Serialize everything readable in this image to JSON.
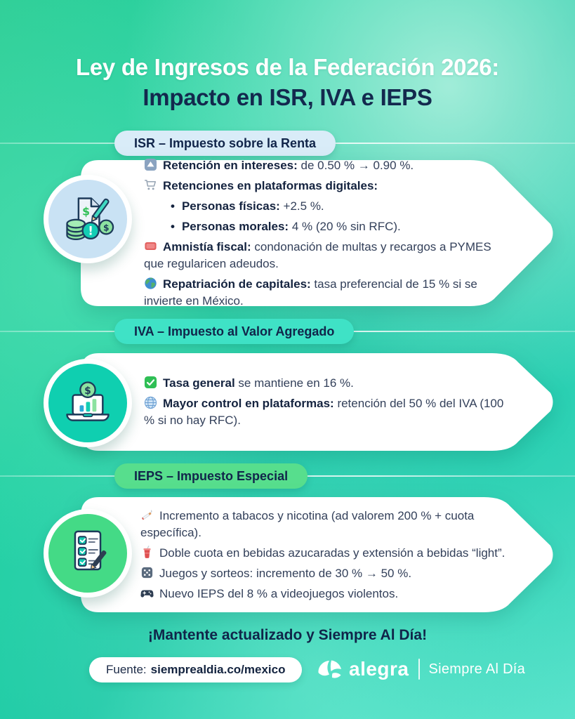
{
  "title": {
    "line1": "Ley de Ingresos de la Federación 2026:",
    "line2": "Impacto en ISR, IVA e IEPS"
  },
  "colors": {
    "background_green": "#2fcf97",
    "background_teal": "#19c7a4",
    "navy_text": "#13294e",
    "card_white": "#ffffff",
    "isr_pill": "#d9ecf8",
    "iva_pill": "#3fe2c6",
    "ieps_pill": "#57de8d",
    "isr_badge": "#c9e2f4",
    "iva_badge": "#0fcfb0",
    "ieps_badge": "#44da86"
  },
  "sections": [
    {
      "id": "isr",
      "pill_label": "ISR – Impuesto sobre la Renta",
      "pill_color": "#d9ecf8",
      "badge_icon": "money-documents-icon",
      "badge_color": "#c9e2f4",
      "items": [
        {
          "icon": "up-button-icon",
          "bold": "Retención en intereses:",
          "text": " de 0.50 % → 0.90 %."
        },
        {
          "icon": "shopping-cart-icon",
          "bold": "Retenciones en plataformas digitales:",
          "text": ""
        },
        {
          "bullet": true,
          "bold": "Personas físicas:",
          "text": " +2.5 %."
        },
        {
          "bullet": true,
          "bold": "Personas morales:",
          "text": " 4 % (20 % sin RFC)."
        },
        {
          "icon": "name-badge-icon",
          "bold": "Amnistía fiscal:",
          "text": " condonación de multas y recargos a PYMES que regularicen adeudos."
        },
        {
          "icon": "globe-americas-icon",
          "bold": "Repatriación de capitales:",
          "text": " tasa preferencial de 15 % si se invierte en México."
        }
      ]
    },
    {
      "id": "iva",
      "pill_label": "IVA – Impuesto al Valor Agregado",
      "pill_color": "#3fe2c6",
      "badge_icon": "laptop-chart-icon",
      "badge_color": "#0fcfb0",
      "items": [
        {
          "icon": "check-mark-icon",
          "bold": "Tasa general",
          "text": " se mantiene en 16 %."
        },
        {
          "icon": "globe-meridians-icon",
          "bold": "Mayor control en plataformas:",
          "text": " retención del 50 % del IVA (100 % si no hay RFC)."
        }
      ]
    },
    {
      "id": "ieps",
      "pill_label": "IEPS – Impuesto Especial",
      "pill_color": "#57de8d",
      "badge_icon": "checklist-icon",
      "badge_color": "#44da86",
      "items": [
        {
          "icon": "cigarette-icon",
          "bold": "",
          "text": "Incremento a tabacos y nicotina (ad valorem 200 % + cuota específica)."
        },
        {
          "icon": "cup-straw-icon",
          "bold": "",
          "text": "Doble cuota en bebidas azucaradas y extensión a bebidas “light”."
        },
        {
          "icon": "game-die-icon",
          "bold": "",
          "text": "Juegos y sorteos: incremento de 30 % → 50 %."
        },
        {
          "icon": "game-controller-icon",
          "bold": "",
          "text": "Nuevo IEPS del 8 % a videojuegos violentos."
        }
      ]
    }
  ],
  "footer": {
    "cta": "¡Mantente actualizado y Siempre Al Día!",
    "source_label": "Fuente:",
    "source_value": "siemprealdia.co/mexico",
    "brand_name": "alegra",
    "brand_tagline": "Siempre Al Día"
  }
}
